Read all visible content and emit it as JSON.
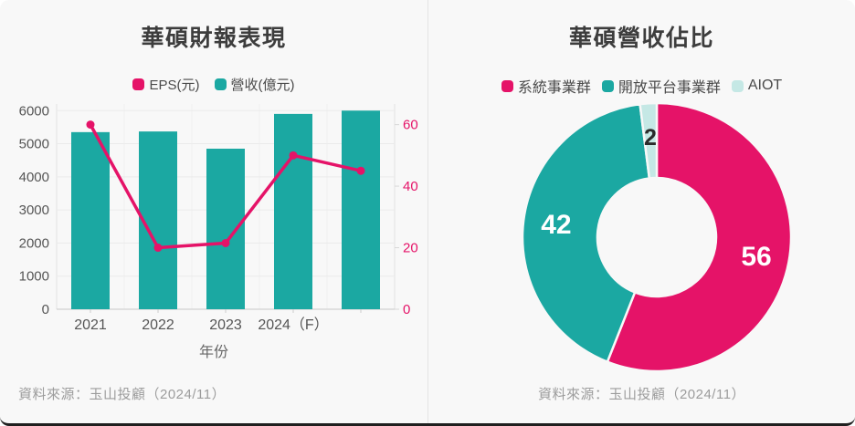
{
  "frame": {
    "bg": "#f8f8f8",
    "bottom_border_color": "#1f1f1f",
    "divider_color": "#e4e4e4"
  },
  "left_panel": {
    "title": "華碩財報表現",
    "source": "資料來源：玉山投顧（2024/11）"
  },
  "right_panel": {
    "title": "華碩營收佔比",
    "source": "資料來源：玉山投顧（2024/11）"
  },
  "chart_data": [
    {
      "type": "bar+line",
      "title": "華碩財報表現",
      "categories": [
        "2021",
        "2022",
        "2023",
        "2024（F）",
        ""
      ],
      "series": [
        {
          "name": "EPS(元)",
          "kind": "line",
          "axis": "right",
          "color": "#e51368",
          "values": [
            60,
            20,
            21.5,
            50,
            45
          ]
        },
        {
          "name": "營收(億元)",
          "kind": "bar",
          "axis": "left",
          "color": "#1ba8a2",
          "values": [
            5350,
            5370,
            4850,
            5900,
            6000
          ]
        }
      ],
      "xlabel": "年份",
      "left_axis": {
        "min": 0,
        "max": 6000,
        "ticks": [
          0,
          1000,
          2000,
          3000,
          4000,
          5000,
          6000
        ],
        "scale_max": 6200,
        "text_color": "#555555"
      },
      "right_axis": {
        "min": 0,
        "max": 60,
        "ticks": [
          0,
          20,
          40,
          60
        ],
        "scale_max": 66.7,
        "text_color": "#e51368"
      },
      "grid": true,
      "legend_position": "top"
    },
    {
      "type": "pie",
      "donut": true,
      "title": "華碩營收佔比",
      "direction": "clockwise",
      "start_angle_deg": 0,
      "slices": [
        {
          "label": "系統事業群",
          "value": 56,
          "color": "#e51368",
          "value_label_color": "#ffffff"
        },
        {
          "label": "開放平台事業群",
          "value": 42,
          "color": "#1ba8a2",
          "value_label_color": "#ffffff"
        },
        {
          "label": "AIOT",
          "value": 2,
          "color": "#c5e8e5",
          "value_label_color": "#2b2b2b"
        }
      ],
      "legend_position": "top"
    }
  ]
}
